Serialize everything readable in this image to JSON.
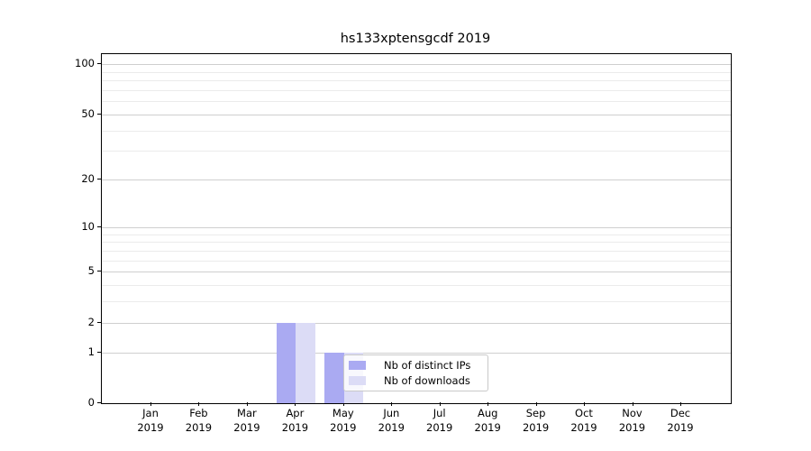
{
  "chart_data": {
    "type": "bar",
    "title": "hs133xptensgcdf 2019",
    "categories": [
      "Jan",
      "Feb",
      "Mar",
      "Apr",
      "May",
      "Jun",
      "Jul",
      "Aug",
      "Sep",
      "Oct",
      "Nov",
      "Dec"
    ],
    "xtick_sublabel": "2019",
    "series": [
      {
        "name": "Nb of distinct IPs",
        "color": "#aaaaf2",
        "values": [
          0,
          0,
          0,
          2,
          1,
          0,
          0,
          0,
          0,
          0,
          0,
          0
        ]
      },
      {
        "name": "Nb of downloads",
        "color": "#dcdcf6",
        "values": [
          0,
          0,
          0,
          2,
          1,
          0,
          0,
          0,
          0,
          0,
          0,
          0
        ]
      }
    ],
    "yscale": "log1p",
    "ylim": [
      0,
      115
    ],
    "yticks": [
      0,
      1,
      2,
      5,
      10,
      20,
      50,
      100
    ],
    "yticks_minor": [
      3,
      4,
      6,
      7,
      8,
      9,
      30,
      40,
      60,
      70,
      80,
      90
    ],
    "grid": "horizontal",
    "legend_position": "inside-bottom-center",
    "colors": {
      "grid_major": "#cfcfcf",
      "grid_minor": "#ebebeb",
      "spine": "#000000",
      "legend_border": "#c9c9c9",
      "legend_background": "rgba(255,255,255,0.8)"
    }
  }
}
